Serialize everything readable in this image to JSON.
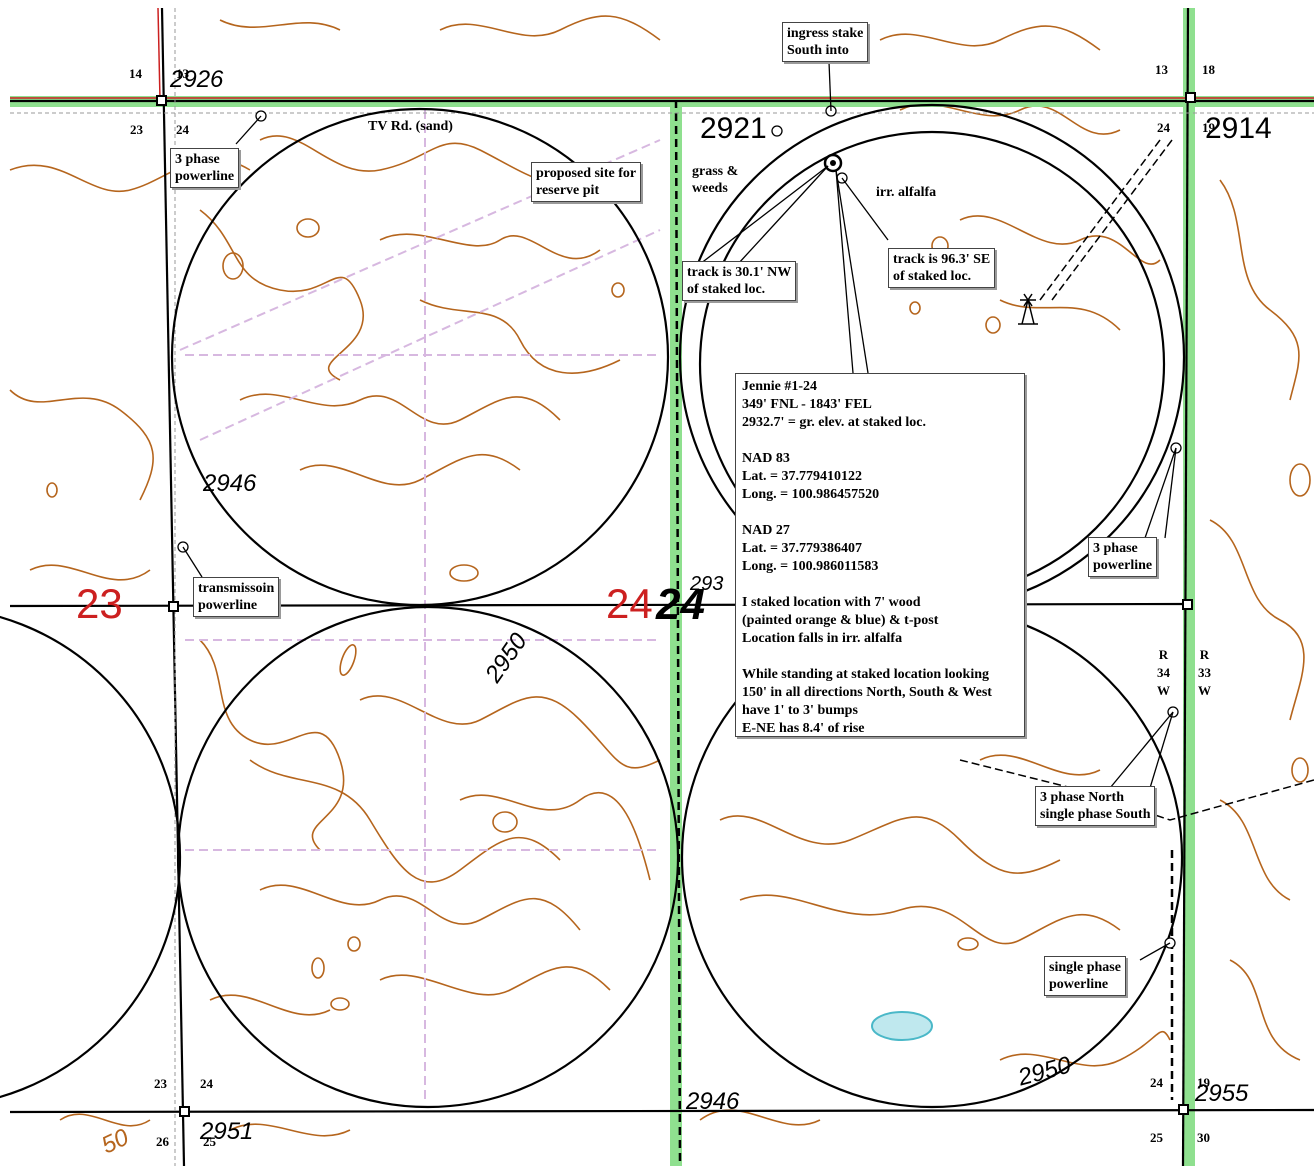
{
  "elevations": {
    "e2926": "2926",
    "e2921": "2921",
    "e2914": "2914",
    "e2946a": "2946",
    "e2950a": "2950",
    "e2950b": "2950",
    "e2946b": "2946",
    "e2951": "2951",
    "e2955": "2955",
    "e293": "293",
    "e50": "50"
  },
  "section_numbers": {
    "n14": "14",
    "n13a": "13",
    "n23a": "23",
    "n24a": "24",
    "n13b": "13",
    "n18": "18",
    "n24b": "24",
    "n19a": "19",
    "n23b": "23",
    "n24c": "24",
    "n26": "26",
    "n25a": "25",
    "n24d": "24",
    "n19b": "19",
    "n25b": "25",
    "n30": "30"
  },
  "red_labels": {
    "sec23": "23",
    "sec24": "24"
  },
  "center_section": "24",
  "range_labels": {
    "left": [
      "R",
      "34",
      "W"
    ],
    "right": [
      "R",
      "33",
      "W"
    ]
  },
  "callouts": {
    "ingress": "ingress stake\nSouth into",
    "pit": "proposed site for\nreserve pit",
    "powerline_nw": "3 phase\npowerline",
    "transmission": "transmissoin\npowerline",
    "track_nw": "track is 30.1' NW\nof staked loc.",
    "track_se": "track is 96.3' SE\nof staked loc.",
    "powerline_e": "3 phase\npowerline",
    "phase_ns": "3 phase North\nsingle phase South",
    "single_phase": "single phase\npowerline"
  },
  "plain_labels": {
    "tv_road": "TV Rd. (sand)",
    "grass": "grass &\nweeds",
    "alfalfa": "irr. alfalfa"
  },
  "info_box": {
    "lines": [
      "Jennie #1-24",
      "349' FNL - 1843' FEL",
      "2932.7' = gr. elev. at staked loc.",
      "",
      "NAD 83",
      "Lat. = 37.779410122",
      "Long. = 100.986457520",
      "",
      "NAD 27",
      "Lat. = 37.779386407",
      "Long. = 100.986011583",
      "",
      "I staked location with 7' wood",
      "(painted orange & blue) & t-post",
      "Location falls in irr. alfalfa",
      "",
      "While standing at staked location looking",
      "150' in all directions North, South & West",
      "have 1' to 3' bumps",
      "E-NE has 8.4' of rise"
    ]
  },
  "colors": {
    "road_green": "#8fe08f",
    "contour_brown": "#b5651d",
    "dashed_road": "#d7b8e0",
    "section_red": "#cc2020",
    "pond_cyan": "#4ab8c8"
  },
  "icons": [
    "windmill-icon"
  ]
}
